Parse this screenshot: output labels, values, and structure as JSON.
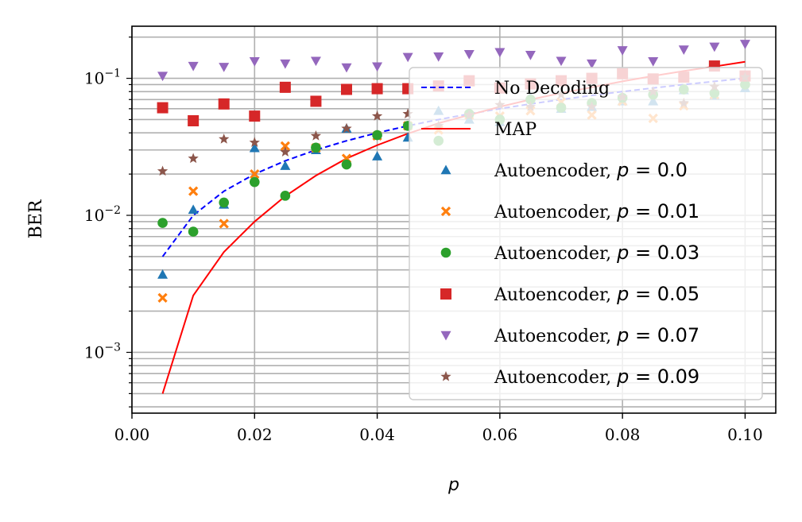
{
  "chart_data": {
    "type": "scatter",
    "title": "",
    "xlabel": "p",
    "ylabel": "BER",
    "xlim": [
      0.0,
      0.105
    ],
    "ylim": [
      0.00036,
      0.24
    ],
    "yscale": "log",
    "grid": true,
    "legend_position": "right",
    "x_ticks": [
      "0.00",
      "0.02",
      "0.04",
      "0.06",
      "0.08",
      "0.10"
    ],
    "y_ticks": [
      {
        "base": "10",
        "exp": "−3",
        "value": 0.001
      },
      {
        "base": "10",
        "exp": "−2",
        "value": 0.01
      },
      {
        "base": "10",
        "exp": "−1",
        "value": 0.1
      }
    ],
    "x": [
      0.005,
      0.01,
      0.015,
      0.02,
      0.025,
      0.03,
      0.035,
      0.04,
      0.045,
      0.05,
      0.055,
      0.06,
      0.065,
      0.07,
      0.075,
      0.08,
      0.085,
      0.09,
      0.095,
      0.1
    ],
    "series": [
      {
        "name": "No Decoding",
        "kind": "line",
        "color": "#0000ff",
        "dash": true,
        "values": [
          0.005,
          0.01,
          0.015,
          0.02,
          0.025,
          0.03,
          0.035,
          0.04,
          0.045,
          0.05,
          0.055,
          0.06,
          0.065,
          0.07,
          0.075,
          0.08,
          0.085,
          0.09,
          0.095,
          0.1
        ]
      },
      {
        "name": "MAP",
        "kind": "line",
        "color": "#ff0000",
        "values": [
          0.0005,
          0.0026,
          0.0054,
          0.009,
          0.0138,
          0.0195,
          0.026,
          0.0325,
          0.0395,
          0.047,
          0.054,
          0.062,
          0.07,
          0.078,
          0.086,
          0.095,
          0.104,
          0.113,
          0.122,
          0.132
        ]
      },
      {
        "name": "Autoencoder, ",
        "param": "p = 0.0",
        "kind": "marker",
        "marker": "triangle-up",
        "color": "#1f77b4",
        "values": [
          0.0037,
          0.011,
          0.012,
          0.031,
          0.023,
          0.03,
          0.043,
          0.027,
          0.037,
          0.058,
          0.05,
          0.048,
          0.073,
          0.06,
          0.062,
          0.068,
          0.068,
          0.082,
          0.075,
          0.085
        ]
      },
      {
        "name": "Autoencoder, ",
        "param": "p = 0.01",
        "kind": "marker",
        "marker": "x",
        "color": "#ff7f0e",
        "values": [
          0.0025,
          0.015,
          0.0087,
          0.02,
          0.032,
          0.031,
          0.026,
          0.038,
          0.045,
          0.042,
          0.054,
          0.053,
          0.058,
          0.067,
          0.054,
          0.068,
          0.051,
          0.063,
          0.076,
          0.094
        ]
      },
      {
        "name": "Autoencoder, ",
        "param": "p = 0.03",
        "kind": "marker",
        "marker": "circle",
        "color": "#2ca02c",
        "values": [
          0.0088,
          0.0076,
          0.0124,
          0.0175,
          0.0139,
          0.0312,
          0.0235,
          0.0385,
          0.045,
          0.035,
          0.055,
          0.05,
          0.07,
          0.061,
          0.066,
          0.072,
          0.076,
          0.083,
          0.078,
          0.09
        ]
      },
      {
        "name": "Autoencoder, ",
        "param": "p = 0.05",
        "kind": "marker",
        "marker": "square",
        "color": "#d62728",
        "values": [
          0.061,
          0.049,
          0.065,
          0.053,
          0.086,
          0.068,
          0.083,
          0.084,
          0.084,
          0.088,
          0.096,
          0.085,
          0.091,
          0.096,
          0.1,
          0.108,
          0.099,
          0.102,
          0.123,
          0.104
        ]
      },
      {
        "name": "Autoencoder, ",
        "param": "p = 0.07",
        "kind": "marker",
        "marker": "triangle-down",
        "color": "#9467bd",
        "values": [
          0.104,
          0.123,
          0.121,
          0.133,
          0.128,
          0.134,
          0.12,
          0.122,
          0.143,
          0.144,
          0.15,
          0.155,
          0.148,
          0.134,
          0.128,
          0.16,
          0.133,
          0.162,
          0.17,
          0.178
        ]
      },
      {
        "name": "Autoencoder, ",
        "param": "p = 0.09",
        "kind": "marker",
        "marker": "star",
        "color": "#8c564b",
        "values": [
          0.021,
          0.026,
          0.036,
          0.034,
          0.029,
          0.038,
          0.043,
          0.053,
          0.055,
          0.045,
          0.054,
          0.064,
          0.062,
          0.076,
          0.062,
          0.073,
          0.08,
          0.066,
          0.087,
          0.102
        ]
      }
    ]
  }
}
